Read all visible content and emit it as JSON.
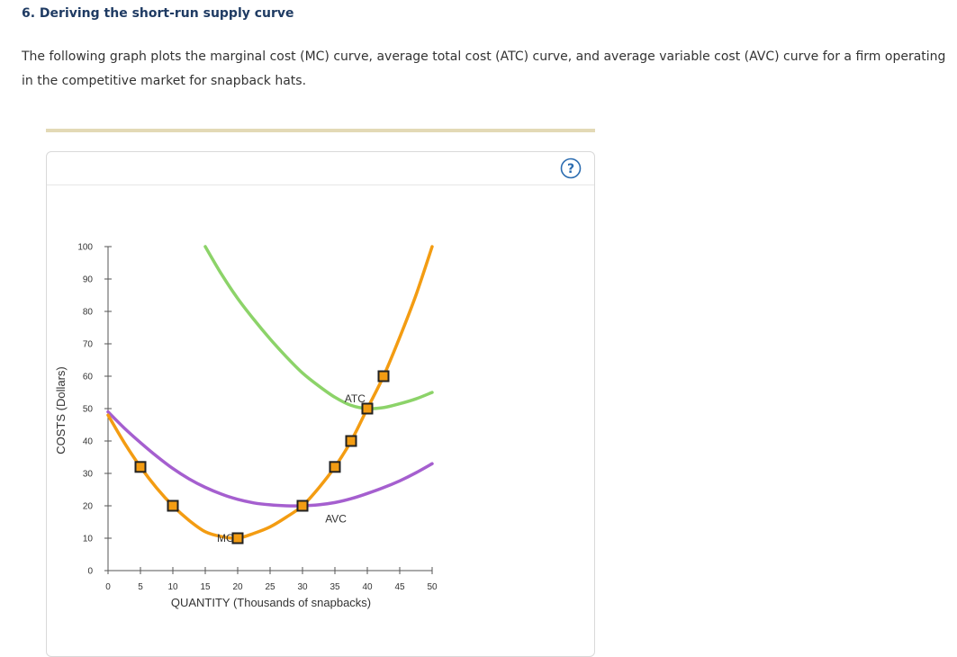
{
  "question": {
    "title": "6. Deriving the short-run supply curve",
    "intro": "The following graph plots the marginal cost (MC) curve, average total cost (ATC) curve, and average variable cost (AVC) curve for a firm operating in the competitive market for snapback hats."
  },
  "help": {
    "icon": "question-circle-icon",
    "label": "?"
  },
  "colors": {
    "mc": "#f39c12",
    "atc": "#8cd369",
    "avc": "#a55fcf",
    "axis": "#555555",
    "point_fill": "#f39c12",
    "point_stroke": "#222222",
    "help": "#2b6cb0"
  },
  "chart_data": {
    "type": "line",
    "title": "",
    "xlabel": "QUANTITY (Thousands of snapbacks)",
    "ylabel": "COSTS (Dollars)",
    "xlim": [
      0,
      50
    ],
    "ylim": [
      0,
      100
    ],
    "xticks": [
      0,
      5,
      10,
      15,
      20,
      25,
      30,
      35,
      40,
      45,
      50
    ],
    "yticks": [
      0,
      10,
      20,
      30,
      40,
      50,
      60,
      70,
      80,
      90,
      100
    ],
    "grid": false,
    "series": [
      {
        "name": "MC",
        "label_at": {
          "x": 16.8,
          "y": 10
        },
        "x": [
          0,
          2.5,
          5,
          7.5,
          10,
          12.5,
          15,
          17.5,
          20,
          22.5,
          25,
          27.5,
          30,
          32.5,
          35,
          37.5,
          40,
          42.5,
          45,
          47.5,
          50
        ],
        "y": [
          48,
          39.5,
          32,
          25.5,
          20,
          15.5,
          12,
          10.5,
          10,
          11.5,
          13.5,
          16.5,
          20,
          25.5,
          32,
          40,
          50,
          60,
          72,
          85,
          100
        ]
      },
      {
        "name": "ATC",
        "label_at": {
          "x": 36.5,
          "y": 53
        },
        "x": [
          15,
          17.5,
          20,
          22.5,
          25,
          27.5,
          30,
          32.5,
          35,
          37.5,
          40,
          42.5,
          45,
          47.5,
          50
        ],
        "y": [
          100,
          91.5,
          84,
          77.5,
          71.5,
          66,
          61,
          57,
          53.5,
          51,
          50,
          50.3,
          51.5,
          53,
          55
        ]
      },
      {
        "name": "AVC",
        "label_at": {
          "x": 33.5,
          "y": 16
        },
        "x": [
          0,
          2.5,
          5,
          7.5,
          10,
          12.5,
          15,
          17.5,
          20,
          22.5,
          25,
          27.5,
          30,
          32.5,
          35,
          37.5,
          40,
          42.5,
          45,
          47.5,
          50
        ],
        "y": [
          49,
          44,
          39.5,
          35.3,
          31.5,
          28.3,
          25.7,
          23.6,
          22,
          20.9,
          20.3,
          20,
          20,
          20.3,
          21,
          22.2,
          23.8,
          25.6,
          27.7,
          30.2,
          33
        ]
      }
    ],
    "points": [
      {
        "x": 5,
        "y": 32
      },
      {
        "x": 10,
        "y": 20
      },
      {
        "x": 20,
        "y": 10
      },
      {
        "x": 30,
        "y": 20
      },
      {
        "x": 35,
        "y": 32
      },
      {
        "x": 37.5,
        "y": 40
      },
      {
        "x": 40,
        "y": 50
      },
      {
        "x": 42.5,
        "y": 60
      }
    ]
  }
}
